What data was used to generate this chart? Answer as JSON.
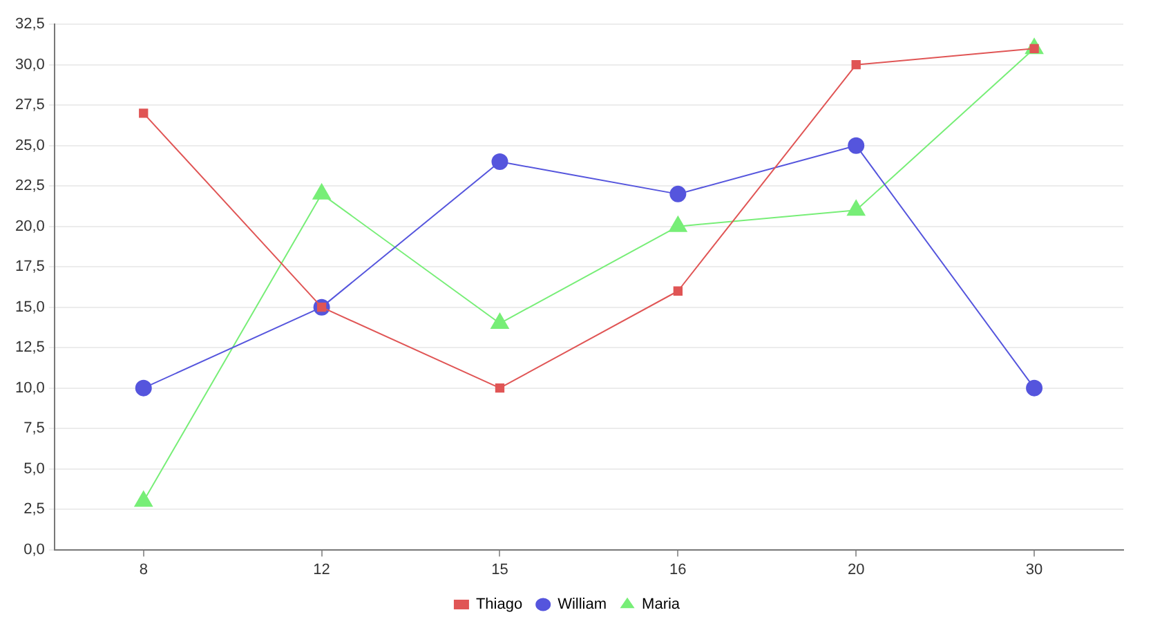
{
  "chart_data": {
    "type": "line",
    "categories": [
      "8",
      "12",
      "15",
      "16",
      "20",
      "30"
    ],
    "series": [
      {
        "name": "Thiago",
        "color": "#e05555",
        "marker": "square",
        "values": [
          27,
          15,
          10,
          16,
          30,
          31
        ]
      },
      {
        "name": "William",
        "color": "#5555dd",
        "marker": "circle",
        "values": [
          10,
          15,
          24,
          22,
          25,
          10
        ]
      },
      {
        "name": "Maria",
        "color": "#77ee77",
        "marker": "triangle",
        "values": [
          3,
          22,
          14,
          20,
          21,
          31
        ]
      }
    ],
    "ylim": [
      0,
      32.5
    ],
    "yticks": [
      {
        "value": 0,
        "label": "0,0"
      },
      {
        "value": 2.5,
        "label": "2,5"
      },
      {
        "value": 5,
        "label": "5,0"
      },
      {
        "value": 7.5,
        "label": "7,5"
      },
      {
        "value": 10,
        "label": "10,0"
      },
      {
        "value": 12.5,
        "label": "12,5"
      },
      {
        "value": 15,
        "label": "15,0"
      },
      {
        "value": 17.5,
        "label": "17,5"
      },
      {
        "value": 20,
        "label": "20,0"
      },
      {
        "value": 22.5,
        "label": "22,5"
      },
      {
        "value": 25,
        "label": "25,0"
      },
      {
        "value": 27.5,
        "label": "27,5"
      },
      {
        "value": 30,
        "label": "30,0"
      },
      {
        "value": 32.5,
        "label": "32,5"
      }
    ],
    "grid": "y",
    "legend": "bottom",
    "line_style": "solid"
  }
}
